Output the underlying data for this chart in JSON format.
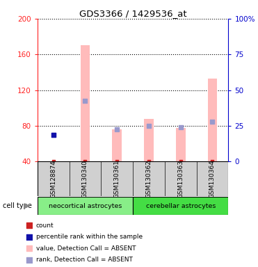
{
  "title": "GDS3366 / 1429536_at",
  "samples": [
    "GSM128874",
    "GSM130340",
    "GSM130361",
    "GSM130362",
    "GSM130363",
    "GSM130364"
  ],
  "pink_bar_values": [
    40.5,
    170.0,
    76.0,
    88.0,
    78.0,
    133.0
  ],
  "blue_sq_vals": [
    70.0,
    108.0,
    76.0,
    80.0,
    78.5,
    85.0
  ],
  "red_sq_vals": [
    40.3,
    40.3,
    40.3,
    40.3,
    40.3,
    40.3
  ],
  "dark_blue_sq": [
    0
  ],
  "dark_blue_y": [
    70.0
  ],
  "ylim_left": [
    40,
    200
  ],
  "yticks_left": [
    40,
    80,
    120,
    160,
    200
  ],
  "yticks_right": [
    0,
    25,
    50,
    75,
    100
  ],
  "left_axis_color": "#ff2222",
  "right_axis_color": "#0000cc",
  "pink_color": "#ffbbbb",
  "blue_sq_color": "#9999cc",
  "red_sq_color": "#cc2222",
  "dark_blue_color": "#1111aa",
  "bar_width": 0.3,
  "grid_color": "black",
  "grid_linestyle": "dotted",
  "grid_linewidth": 0.8,
  "bg_gray": "#d0d0d0",
  "cell_type_green1": "#88ee88",
  "cell_type_green2": "#44dd44",
  "legend_items": [
    {
      "label": "count",
      "color": "#cc2222"
    },
    {
      "label": "percentile rank within the sample",
      "color": "#1111aa"
    },
    {
      "label": "value, Detection Call = ABSENT",
      "color": "#ffbbbb"
    },
    {
      "label": "rank, Detection Call = ABSENT",
      "color": "#9999cc"
    }
  ],
  "figwidth": 3.71,
  "figheight": 3.84,
  "dpi": 100
}
